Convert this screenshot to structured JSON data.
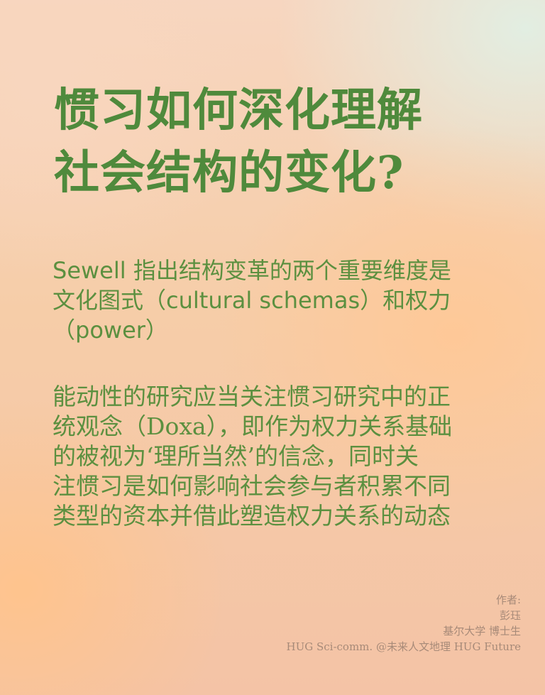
{
  "title": {
    "line1": "惯习如何深化理解",
    "line2": "社会结构的变化?"
  },
  "paragraph1": {
    "line1": "Sewell 指出结构变革的两个重要维度是",
    "line2": "文化图式（cultural schemas）和权力",
    "line3": "（power）"
  },
  "paragraph2": {
    "line1": "能动性的研究应当关注惯习研究中的正",
    "line2": "统观念（Doxa），即作为权力关系基础",
    "line3": "的被视为‘理所当然’的信念，同时关",
    "line4": "注惯习是如何影响社会参与者积累不同",
    "line5": "类型的资本并借此塑造权力关系的动态"
  },
  "credits": {
    "label": "作者:",
    "author": "彭珏",
    "affiliation": "基尔大学 博士生",
    "source": "HUG Sci-comm.  @未来人文地理 HUG Future"
  },
  "colors": {
    "text_green": "#5c9040",
    "title_green": "#4f8a3c",
    "credit_text": "#a78a78"
  }
}
